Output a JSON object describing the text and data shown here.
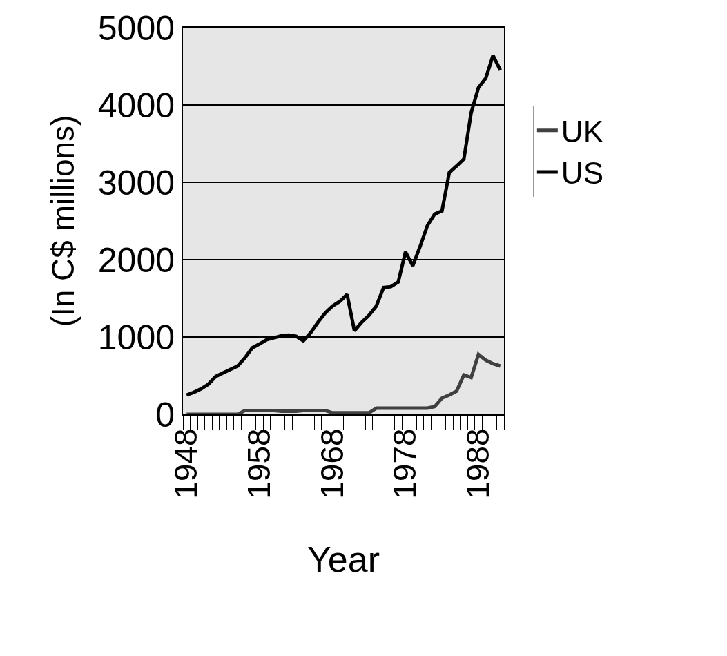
{
  "chart_data": {
    "type": "line",
    "xlabel": "Year",
    "ylabel": "(In C$ millions)",
    "categories": [
      "1948",
      null,
      null,
      null,
      null,
      null,
      null,
      null,
      null,
      null,
      "1958",
      null,
      null,
      null,
      null,
      null,
      null,
      null,
      null,
      null,
      "1968",
      null,
      null,
      null,
      null,
      null,
      null,
      null,
      null,
      null,
      "1978",
      null,
      null,
      null,
      null,
      null,
      null,
      null,
      null,
      null,
      "1988",
      null,
      null,
      null
    ],
    "series": [
      {
        "name": "UK",
        "color": "#404040",
        "values": [
          0,
          0,
          0,
          0,
          0,
          0,
          0,
          0,
          50,
          50,
          50,
          50,
          50,
          40,
          40,
          40,
          50,
          50,
          50,
          50,
          20,
          20,
          20,
          20,
          20,
          20,
          80,
          80,
          80,
          80,
          80,
          80,
          80,
          80,
          100,
          210,
          250,
          300,
          510,
          475,
          775,
          700,
          655,
          625
        ]
      },
      {
        "name": "US",
        "color": "#000000",
        "values": [
          250,
          285,
          330,
          390,
          490,
          535,
          580,
          625,
          730,
          860,
          910,
          965,
          990,
          1015,
          1025,
          1010,
          950,
          1055,
          1190,
          1310,
          1400,
          1460,
          1550,
          1080,
          1190,
          1280,
          1400,
          1640,
          1650,
          1710,
          2100,
          1920,
          2170,
          2440,
          2590,
          2630,
          3125,
          3210,
          3300,
          3900,
          4225,
          4345,
          4640,
          4450
        ]
      }
    ],
    "ylim": [
      0,
      5000
    ],
    "yticks": [
      0,
      1000,
      2000,
      3000,
      4000,
      5000
    ],
    "grid": "y",
    "legend": "right",
    "marker": "none",
    "line_style": "solid"
  }
}
